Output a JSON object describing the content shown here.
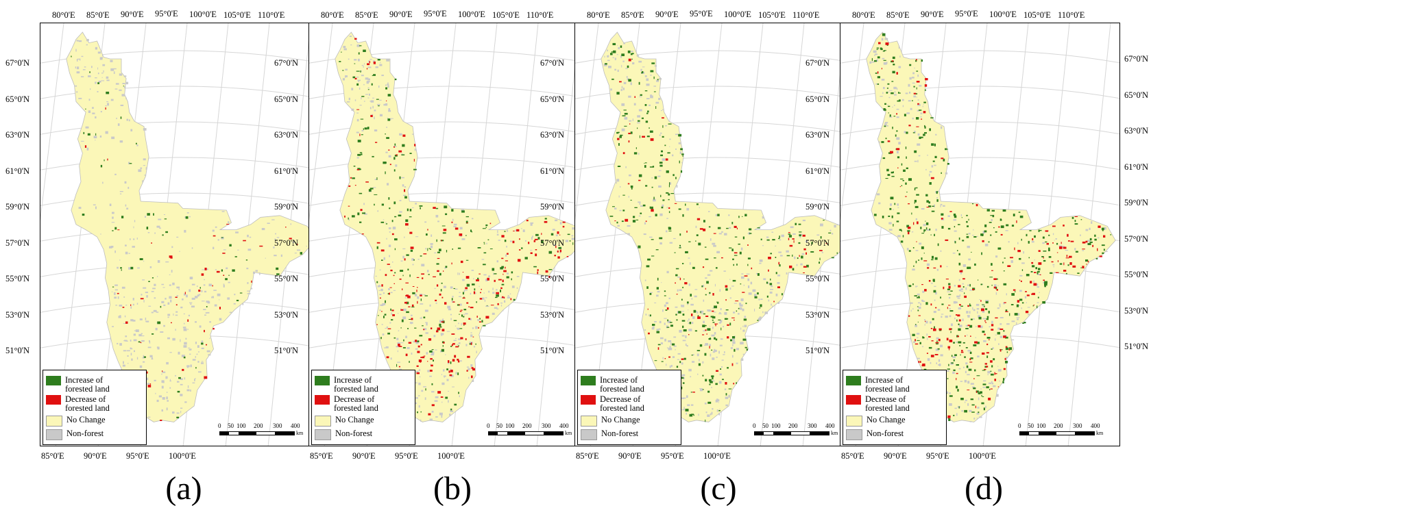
{
  "panels": [
    {
      "caption": "(a)",
      "pattern": "a"
    },
    {
      "caption": "(b)",
      "pattern": "b"
    },
    {
      "caption": "(c)",
      "pattern": "c"
    },
    {
      "caption": "(d)",
      "pattern": "d"
    }
  ],
  "top_lon_labels": [
    "80°0'E",
    "85°0'E",
    "90°0'E",
    "95°0'E",
    "100°0'E",
    "105°0'E",
    "110°0'E"
  ],
  "bottom_lon_labels": [
    "85°0'E",
    "90°0'E",
    "95°0'E",
    "100°0'E"
  ],
  "lat_labels": [
    "67°0'N",
    "65°0'N",
    "63°0'N",
    "61°0'N",
    "59°0'N",
    "57°0'N",
    "55°0'N",
    "53°0'N",
    "51°0'N"
  ],
  "legend": [
    {
      "label": "Increase of forested land",
      "color": "#2e7d1e"
    },
    {
      "label": "Decrease of forested land",
      "color": "#e01010"
    },
    {
      "label": "No Change",
      "color": "#fbf7b8"
    },
    {
      "label": "Non-forest",
      "color": "#c9c9c9"
    }
  ],
  "scale_bar": {
    "ticks": [
      "0",
      "50",
      "100",
      "200",
      "300",
      "400"
    ],
    "unit": "km"
  }
}
